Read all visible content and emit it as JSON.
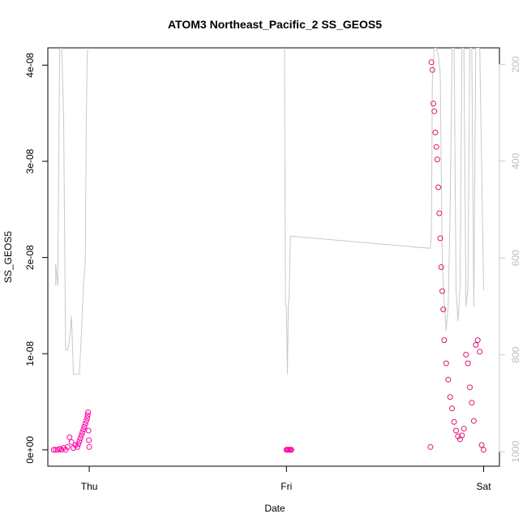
{
  "chart_data": {
    "type": "scatter",
    "title": "ATOM3 Northeast_Pacific_2 SS_GEOS5",
    "xlabel": "Date",
    "ylabel": "SS_GEOS5",
    "x_ticks": [
      "Thu",
      "Fri",
      "Sat"
    ],
    "x_tick_days": [
      0,
      1,
      2
    ],
    "xlim_days": [
      -0.21,
      2.08
    ],
    "ylim": [
      -1.7e-09,
      4.18e-08
    ],
    "y_ticks": [
      0,
      1e-08,
      2e-08,
      3e-08,
      4e-08
    ],
    "y_tick_labels": [
      "0e+00",
      "1e-08",
      "2e-08",
      "3e-08",
      "4e-08"
    ],
    "right_axis": {
      "ticks": [
        200,
        400,
        600,
        800,
        1000
      ],
      "tick_labels": [
        "200",
        "400",
        "600",
        "800",
        "1000"
      ],
      "lim_top": 166,
      "lim_bottom": 1030,
      "color": "#c8c8c8"
    },
    "series": [
      {
        "color": "#ff00a0",
        "x_days": [
          -0.18,
          -0.17,
          -0.16,
          -0.15,
          -0.14,
          -0.13,
          -0.12,
          -0.11,
          -0.1,
          -0.09,
          -0.08,
          -0.07,
          -0.06,
          -0.055,
          -0.05,
          -0.045,
          -0.04,
          -0.035,
          -0.03,
          -0.025,
          -0.02,
          -0.015,
          -0.01,
          -0.008,
          -0.006,
          -0.004,
          -0.002,
          0.0,
          1.0,
          1.005,
          1.01,
          1.015,
          1.02,
          1.025
        ],
        "y": [
          0,
          0,
          0,
          1e-10,
          0,
          2e-10,
          0,
          3e-10,
          1.3e-09,
          8e-10,
          2e-10,
          5e-10,
          3e-10,
          6e-10,
          9e-10,
          1.2e-09,
          1.5e-09,
          1.8e-09,
          2.1e-09,
          2.4e-09,
          2.7e-09,
          3e-09,
          3.3e-09,
          3.6e-09,
          3.9e-09,
          2e-09,
          1e-09,
          3e-10,
          0,
          0,
          0,
          0,
          0,
          0
        ]
      },
      {
        "color": "#e0146e",
        "x_days": [
          1.73,
          1.735,
          1.74,
          1.745,
          1.75,
          1.755,
          1.76,
          1.765,
          1.77,
          1.775,
          1.78,
          1.785,
          1.79,
          1.795,
          1.8,
          1.81,
          1.82,
          1.83,
          1.84,
          1.85,
          1.86,
          1.87,
          1.88,
          1.89,
          1.9,
          1.91,
          1.92,
          1.93,
          1.94,
          1.95,
          1.96,
          1.97,
          1.98,
          1.99,
          2.0
        ],
        "y": [
          3e-10,
          4.03e-08,
          3.95e-08,
          3.6e-08,
          3.52e-08,
          3.3e-08,
          3.15e-08,
          3.02e-08,
          2.73e-08,
          2.46e-08,
          2.2e-08,
          1.9e-08,
          1.65e-08,
          1.46e-08,
          1.14e-08,
          9e-09,
          7.3e-09,
          5.5e-09,
          4.3e-09,
          2.9e-09,
          2e-09,
          1.4e-09,
          1.1e-09,
          1.5e-09,
          2.2e-09,
          9.9e-09,
          9e-09,
          6.5e-09,
          4.9e-09,
          3e-09,
          1.09e-08,
          1.14e-08,
          1.02e-08,
          5e-10,
          0
        ]
      }
    ],
    "altitude_line": {
      "color": "#c8c8c8",
      "x_days": [
        -0.17,
        -0.17,
        -0.16,
        -0.15,
        -0.14,
        -0.13,
        -0.12,
        -0.11,
        -0.1,
        -0.09,
        -0.08,
        -0.07,
        -0.06,
        -0.05,
        -0.04,
        -0.03,
        -0.02,
        -0.015,
        -0.01,
        -0.005,
        0.0,
        0.99,
        0.995,
        1.0,
        1.005,
        1.01,
        1.013,
        1.02,
        1.73,
        1.735,
        1.74,
        1.75,
        1.76,
        1.77,
        1.78,
        1.79,
        1.8,
        1.81,
        1.82,
        1.83,
        1.84,
        1.85,
        1.86,
        1.87,
        1.88,
        1.89,
        1.9,
        1.91,
        1.92,
        1.93,
        1.94,
        1.95,
        1.96,
        1.97,
        1.98,
        2.0
      ],
      "pressure": [
        657,
        612,
        658,
        170,
        160,
        310,
        790,
        790,
        770,
        720,
        840,
        840,
        840,
        840,
        760,
        660,
        610,
        320,
        180,
        160,
        160,
        160,
        700,
        700,
        840,
        690,
        690,
        555,
        580,
        545,
        230,
        166,
        166,
        180,
        220,
        610,
        690,
        750,
        700,
        500,
        166,
        166,
        666,
        730,
        660,
        166,
        166,
        700,
        666,
        166,
        166,
        700,
        166,
        166,
        166,
        666
      ]
    }
  }
}
